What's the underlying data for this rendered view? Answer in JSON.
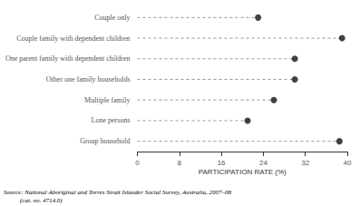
{
  "chart_data": {
    "type": "lollipop",
    "orientation": "horizontal",
    "categories": [
      "Group household",
      "Lone persons",
      "Multiple family",
      "Other one family households",
      "One parent family with dependent children",
      "Couple family with dependent children",
      "Couple only"
    ],
    "values": [
      38.5,
      21.0,
      26.0,
      30.0,
      30.0,
      39.0,
      23.0
    ],
    "color": "#111111",
    "xlabel": "PARTICIPATION RATE (%)",
    "xlim": [
      0,
      40
    ],
    "xticks": [
      0,
      8,
      16,
      24,
      32,
      40
    ],
    "grid": false,
    "annotations": [
      "Source: National Aboriginal and Torres Strait Islander Social Survey, Australia, 2007–08",
      "(cat. no. 4714.0)"
    ]
  }
}
